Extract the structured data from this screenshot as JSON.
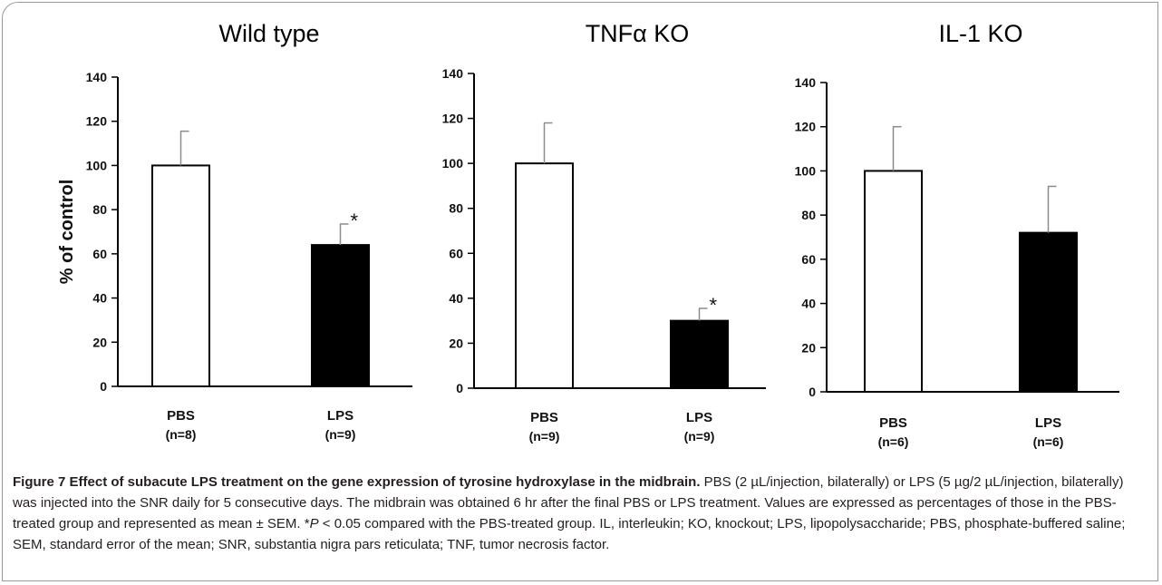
{
  "chart_data": [
    {
      "type": "bar",
      "title": "Wild type",
      "ylabel": "% of control",
      "ylim": [
        0,
        140
      ],
      "yticks": [
        0,
        20,
        40,
        60,
        80,
        100,
        120,
        140
      ],
      "categories": [
        "PBS",
        "LPS"
      ],
      "category_notes": [
        "(n=8)",
        "(n=9)"
      ],
      "values": [
        100,
        64
      ],
      "errors": [
        15.5,
        9.5
      ],
      "significance": [
        "",
        "*"
      ],
      "bar_colors": [
        "#ffffff",
        "#000000"
      ]
    },
    {
      "type": "bar",
      "title": "TNFα KO",
      "ylabel": "",
      "ylim": [
        0,
        140
      ],
      "yticks": [
        0,
        20,
        40,
        60,
        80,
        100,
        120,
        140
      ],
      "categories": [
        "PBS",
        "LPS"
      ],
      "category_notes": [
        "(n=9)",
        "(n=9)"
      ],
      "values": [
        100,
        30
      ],
      "errors": [
        18,
        5.5
      ],
      "significance": [
        "",
        "*"
      ],
      "bar_colors": [
        "#ffffff",
        "#000000"
      ]
    },
    {
      "type": "bar",
      "title": "IL-1 KO",
      "ylabel": "",
      "ylim": [
        0,
        140
      ],
      "yticks": [
        0,
        20,
        40,
        60,
        80,
        100,
        120,
        140
      ],
      "categories": [
        "PBS",
        "LPS"
      ],
      "category_notes": [
        "(n=6)",
        "(n=6)"
      ],
      "values": [
        100,
        72
      ],
      "errors": [
        20,
        21
      ],
      "significance": [
        "",
        ""
      ],
      "bar_colors": [
        "#ffffff",
        "#000000"
      ]
    }
  ],
  "caption": {
    "label": "Figure 7 Effect of subacute LPS treatment on the gene expression of tyrosine hydroxylase in the midbrain.",
    "text1": " PBS (2 µL/injection, bilaterally) or LPS (5 µg/2 µL/injection, bilaterally) was injected into the SNR daily for 5 consecutive days. The midbrain was obtained 6 hr after the final PBS or LPS treatment. Values are expressed as percentages of those in the PBS-treated group and represented as mean ± SEM. *",
    "p": "P",
    "text2": " < 0.05 compared with the PBS-treated group. IL, interleukin; KO, knockout; LPS, lipopolysaccharide; PBS, phosphate-buffered saline; SEM, standard error of the mean; SNR, substantia nigra pars reticulata;  TNF, tumor necrosis factor."
  }
}
